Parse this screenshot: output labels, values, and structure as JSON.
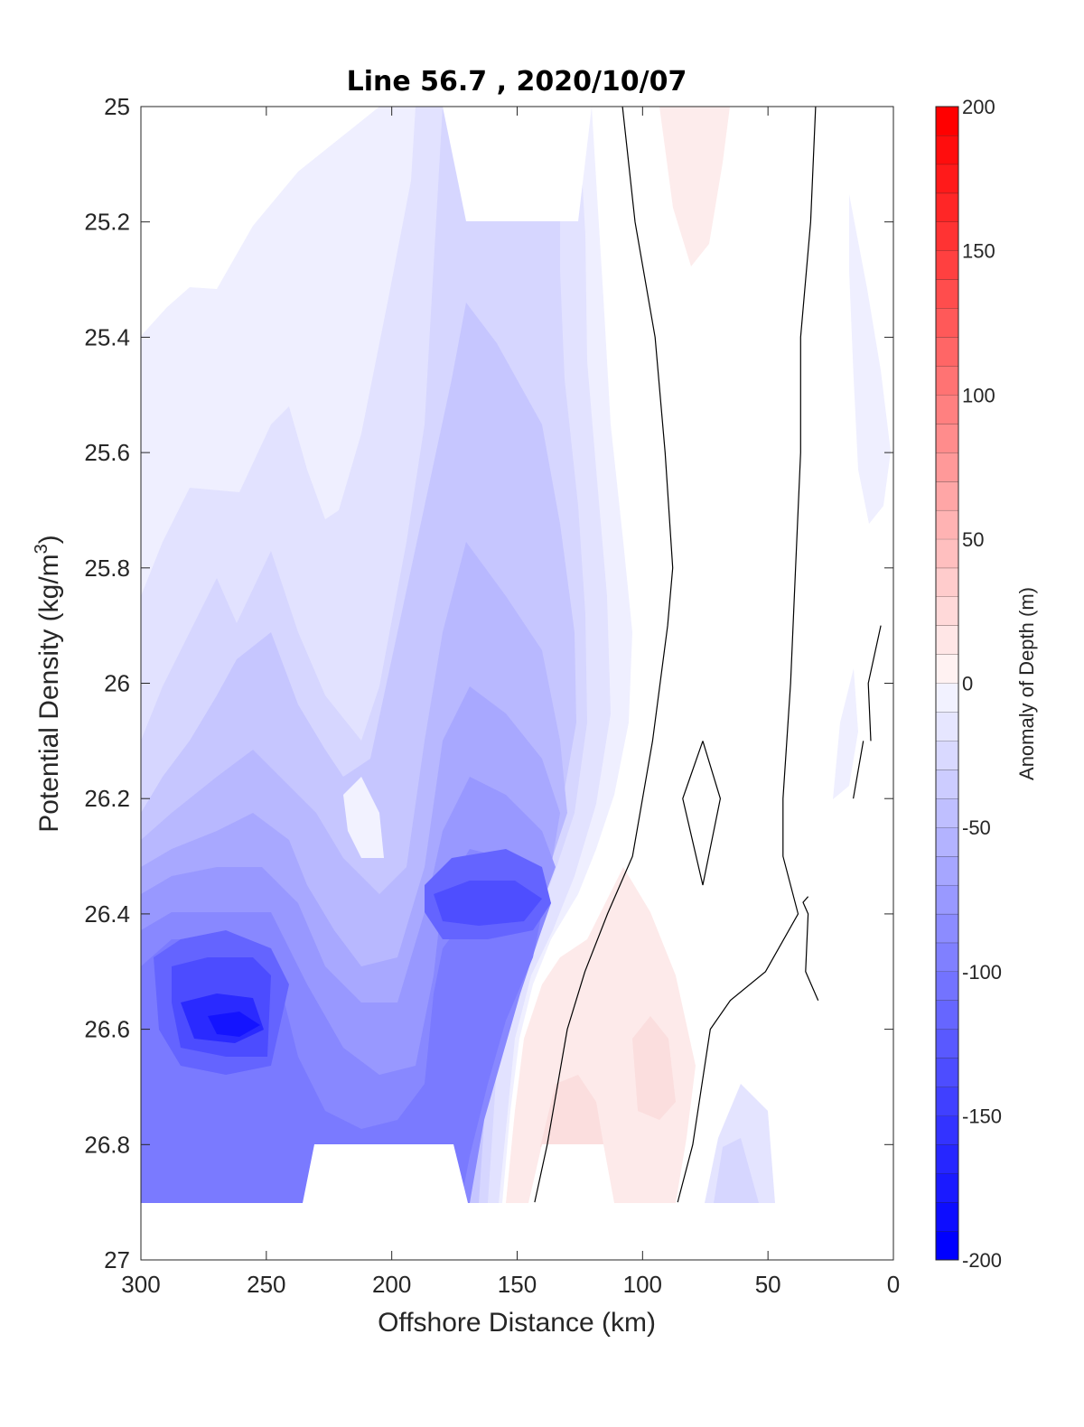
{
  "chart_data": {
    "type": "heatmap",
    "title": "Line 56.7 , 2020/10/07",
    "xlabel": "Offshore Distance (km)",
    "ylabel_main": "Potential Density (kg/m",
    "ylabel_sup": "3",
    "ylabel_close": ")",
    "xlim": [
      300,
      0
    ],
    "ylim": [
      25,
      27
    ],
    "y_reversed": true,
    "x_ticks": [
      300,
      250,
      200,
      150,
      100,
      50,
      0
    ],
    "x_tick_labels": [
      "300",
      "250",
      "200",
      "150",
      "100",
      "50",
      "0"
    ],
    "y_ticks": [
      25,
      25.2,
      25.4,
      25.6,
      25.8,
      26,
      26.2,
      26.4,
      26.6,
      26.8,
      27
    ],
    "y_tick_labels": [
      "25",
      "25.2",
      "25.4",
      "25.6",
      "25.8",
      "26",
      "26.2",
      "26.4",
      "26.6",
      "26.8",
      "27"
    ],
    "grid": false,
    "colorbar": {
      "label": "Anomaly of Depth (m)",
      "range": [
        -200,
        200
      ],
      "step": 10,
      "ticks": [
        200,
        150,
        100,
        50,
        0,
        -50,
        -100,
        -150,
        -200
      ],
      "tick_labels": [
        "200",
        "150",
        "100",
        "50",
        "0",
        "-50",
        "-100",
        "-150",
        "-200"
      ],
      "colormap": "blue-white-red",
      "low_color": "#0000ff",
      "mid_color": "#ffffff",
      "high_color": "#ff0000"
    },
    "anomaly_features": [
      {
        "name": "deep offshore core",
        "x_km": 262,
        "density": 26.6,
        "anomaly_m": -180
      },
      {
        "name": "mid-section core",
        "x_km": 160,
        "density": 26.4,
        "anomaly_m": -150
      },
      {
        "name": "upper mid core",
        "x_km": 165,
        "density": 25.9,
        "anomaly_m": -90
      },
      {
        "name": "broad negative layer",
        "x_km": 255,
        "density": 26.0,
        "anomaly_m": -50
      },
      {
        "name": "near-surface offshore",
        "x_km": 250,
        "density": 25.6,
        "anomaly_m": -20
      },
      {
        "name": "inshore positive",
        "x_km": 80,
        "density": 26.6,
        "anomaly_m": 20
      },
      {
        "name": "surface positive",
        "x_km": 85,
        "density": 25.1,
        "anomaly_m": 10
      },
      {
        "name": "deep inshore negative",
        "x_km": 65,
        "density": 26.8,
        "anomaly_m": -20
      }
    ],
    "zero_contours": [
      {
        "points": [
          [
            108,
            25.0
          ],
          [
            103,
            25.2
          ],
          [
            95,
            25.4
          ],
          [
            91,
            25.6
          ],
          [
            88,
            25.8
          ],
          [
            90,
            25.9
          ],
          [
            96,
            26.1
          ],
          [
            104,
            26.3
          ],
          [
            114,
            26.4
          ],
          [
            123,
            26.5
          ],
          [
            130,
            26.6
          ],
          [
            138,
            26.8
          ],
          [
            143,
            26.9
          ]
        ]
      },
      {
        "points": [
          [
            31,
            25.0
          ],
          [
            33,
            25.2
          ],
          [
            37,
            25.4
          ],
          [
            37,
            25.6
          ],
          [
            39,
            25.8
          ],
          [
            41,
            26.0
          ],
          [
            44,
            26.2
          ],
          [
            44,
            26.3
          ],
          [
            38,
            26.4
          ],
          [
            51,
            26.5
          ],
          [
            65,
            26.55
          ],
          [
            73,
            26.6
          ],
          [
            80,
            26.8
          ],
          [
            86,
            26.9
          ]
        ]
      },
      {
        "points": [
          [
            76,
            26.1
          ],
          [
            69,
            26.2
          ],
          [
            76,
            26.35
          ],
          [
            84,
            26.2
          ],
          [
            76,
            26.1
          ]
        ]
      },
      {
        "points": [
          [
            34,
            26.37
          ],
          [
            36,
            26.38
          ],
          [
            34,
            26.4
          ],
          [
            35,
            26.5
          ],
          [
            30,
            26.55
          ]
        ]
      },
      {
        "points": [
          [
            5,
            25.9
          ],
          [
            10,
            26.0
          ],
          [
            9,
            26.1
          ]
        ]
      },
      {
        "points": [
          [
            12,
            26.1
          ],
          [
            16,
            26.2
          ]
        ]
      }
    ]
  }
}
